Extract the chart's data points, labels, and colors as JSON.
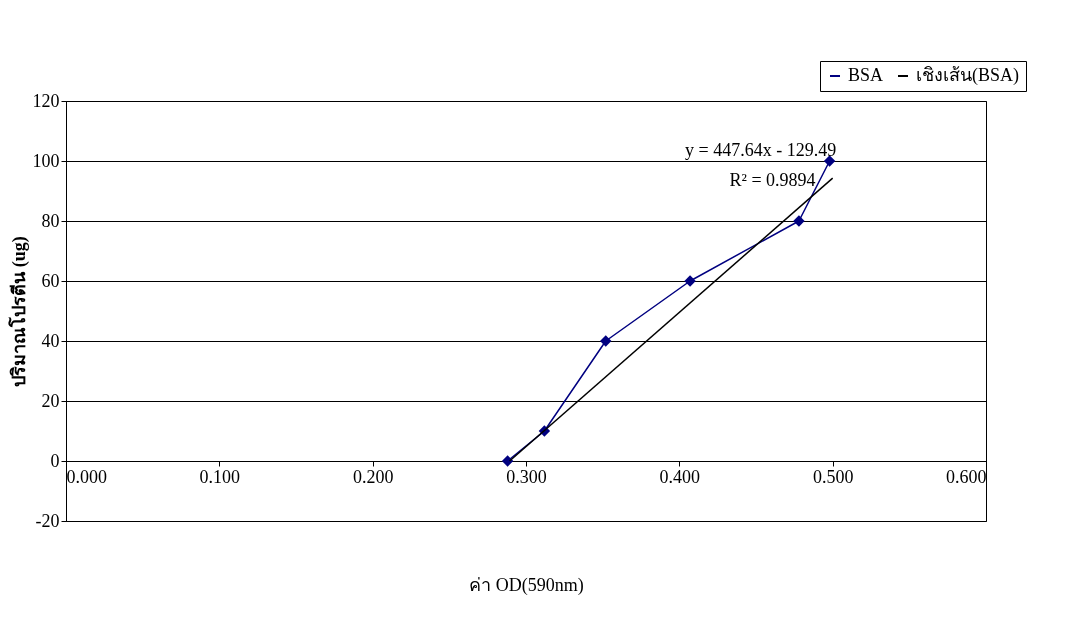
{
  "chart_data": {
    "type": "line",
    "xlabel": "ค่า OD(590nm)",
    "ylabel": "ปริมาณโปรตีน (ug)",
    "xlim": [
      0,
      0.6
    ],
    "xticks": [
      {
        "value": 0,
        "label": "0.000"
      },
      {
        "value": 0.1,
        "label": "0.100"
      },
      {
        "value": 0.2,
        "label": "0.200"
      },
      {
        "value": 0.3,
        "label": "0.300"
      },
      {
        "value": 0.4,
        "label": "0.400"
      },
      {
        "value": 0.5,
        "label": "0.500"
      },
      {
        "value": 0.6,
        "label": "0.600"
      }
    ],
    "ylim": [
      -20,
      120
    ],
    "yticks": [
      -20,
      0,
      20,
      40,
      60,
      80,
      100,
      120
    ],
    "grid": "y",
    "legend": "top right",
    "series": [
      {
        "name": "BSA",
        "color": "#000080",
        "marker": "diamond",
        "x": [
          0.288,
          0.312,
          0.352,
          0.407,
          0.478,
          0.498
        ],
        "values": [
          0,
          10,
          40,
          60,
          80,
          100
        ]
      },
      {
        "name": "เชิงเส้น(BSA)",
        "color": "#000000",
        "marker": "none",
        "x": [
          0.2893,
          0.5
        ],
        "values": [
          0,
          94.3
        ]
      }
    ],
    "annotations": [
      "y = 447.64x - 129.49",
      "R² = 0.9894"
    ]
  }
}
